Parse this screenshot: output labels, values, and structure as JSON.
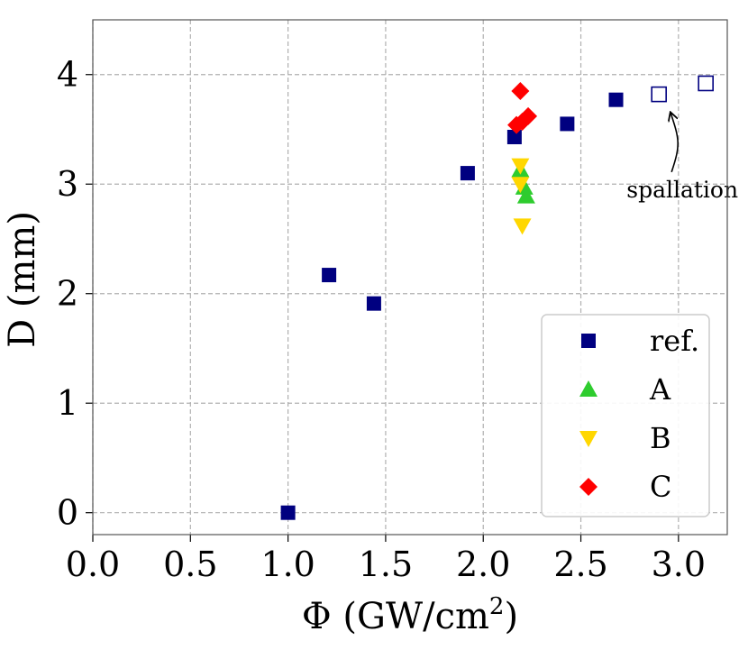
{
  "chart_data": {
    "type": "scatter",
    "title": "",
    "xlabel": "Φ (GW/cm",
    "xlabel_sup": "2",
    "xlabel_close": ")",
    "ylabel": "D (mm)",
    "xlim": [
      0.0,
      3.25
    ],
    "ylim": [
      -0.2,
      4.5
    ],
    "xticks": [
      0.0,
      0.5,
      1.0,
      1.5,
      2.0,
      2.5,
      3.0
    ],
    "xtick_labels": [
      "0.0",
      "0.5",
      "1.0",
      "1.5",
      "2.0",
      "2.5",
      "3.0"
    ],
    "yticks": [
      0,
      1,
      2,
      3,
      4
    ],
    "ytick_labels": [
      "0",
      "1",
      "2",
      "3",
      "4"
    ],
    "grid": true,
    "legend_position": "lower-right",
    "series": [
      {
        "name": "ref.",
        "marker": "square",
        "color": "#000080",
        "points": [
          {
            "x": 1.0,
            "y": 0.0
          },
          {
            "x": 1.21,
            "y": 2.17
          },
          {
            "x": 1.44,
            "y": 1.91
          },
          {
            "x": 1.92,
            "y": 3.1
          },
          {
            "x": 2.16,
            "y": 3.43
          },
          {
            "x": 2.43,
            "y": 3.55
          },
          {
            "x": 2.68,
            "y": 3.77
          },
          {
            "x": 2.9,
            "y": 3.82,
            "hollow": true
          },
          {
            "x": 3.14,
            "y": 3.92,
            "hollow": true
          }
        ]
      },
      {
        "name": "A",
        "marker": "triangle-up",
        "color": "#2ecc2e",
        "points": [
          {
            "x": 2.19,
            "y": 3.13
          },
          {
            "x": 2.21,
            "y": 2.97
          },
          {
            "x": 2.22,
            "y": 2.89
          }
        ]
      },
      {
        "name": "B",
        "marker": "triangle-down",
        "color": "#ffd700",
        "points": [
          {
            "x": 2.19,
            "y": 3.17
          },
          {
            "x": 2.19,
            "y": 3.0
          },
          {
            "x": 2.2,
            "y": 2.62
          }
        ]
      },
      {
        "name": "C",
        "marker": "diamond",
        "color": "#ff0000",
        "points": [
          {
            "x": 2.19,
            "y": 3.85
          },
          {
            "x": 2.17,
            "y": 3.54
          },
          {
            "x": 2.2,
            "y": 3.57
          },
          {
            "x": 2.23,
            "y": 3.62
          }
        ]
      }
    ],
    "annotations": [
      {
        "text": "spallation",
        "target_x": 2.96,
        "target_y": 3.65,
        "text_x": 3.02,
        "text_y": 2.88
      }
    ]
  }
}
